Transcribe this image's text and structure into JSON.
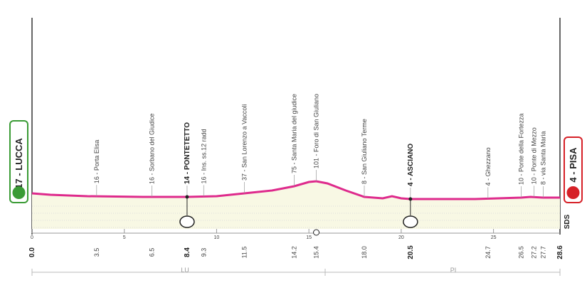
{
  "start": {
    "label": "17 - LUCCA",
    "km": "0.0"
  },
  "finish": {
    "label": "4 - PISA",
    "km": "28.6"
  },
  "waypoints": [
    {
      "km": "3.5",
      "label": "16 - Porta Elisa",
      "highlight": false
    },
    {
      "km": "6.5",
      "label": "16 - Sorbano del Giudice",
      "highlight": false
    },
    {
      "km": "8.4",
      "label": "14 - PONTETETTO",
      "highlight": true
    },
    {
      "km": "9.3",
      "label": "16 - Ins. ss.12 radd",
      "highlight": false
    },
    {
      "km": "11.5",
      "label": "37 - San Lorenzo a Vaccoli",
      "highlight": false
    },
    {
      "km": "14.2",
      "label": "75 - Santa Maria del giudice",
      "highlight": false
    },
    {
      "km": "15.4",
      "label": "101 - Foro di San Giuliano",
      "highlight": false
    },
    {
      "km": "18.0",
      "label": "8 - San Giuliano Terme",
      "highlight": false
    },
    {
      "km": "20.5",
      "label": "4 - ASCIANO",
      "highlight": true
    },
    {
      "km": "24.7",
      "label": "4 - Ghezzano",
      "highlight": false
    },
    {
      "km": "26.5",
      "label": "10 - Ponte della Fortezza",
      "highlight": false
    },
    {
      "km": "27.2",
      "label": "10 - Ponte di Mezzo",
      "highlight": false
    },
    {
      "km": "27.7",
      "label": "8 - via Santa Maria",
      "highlight": false
    }
  ],
  "km_ticks": [
    0,
    5,
    10,
    15,
    20,
    25
  ],
  "regions": [
    "LU",
    "PI"
  ],
  "logo": "SDS"
}
